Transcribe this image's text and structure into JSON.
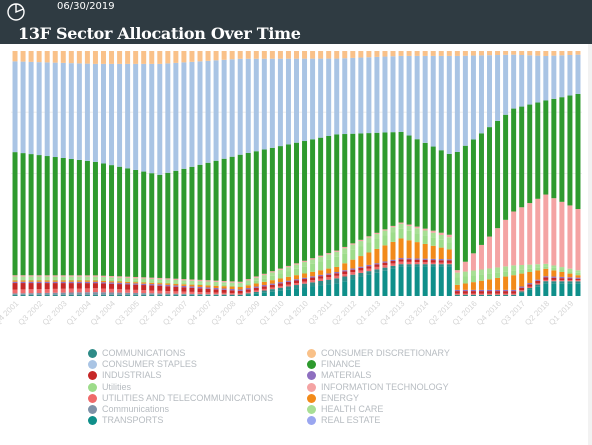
{
  "header": {
    "date": "06/30/2019",
    "title": "13F Sector Allocation Over Time"
  },
  "colors": {
    "header_bg": "#2f3b42",
    "page_bg": "#f2f2f2"
  },
  "chart_data": {
    "type": "bar",
    "stacked": true,
    "normalized": true,
    "title": "13F Sector Allocation Over Time",
    "ylim": [
      0,
      100
    ],
    "x_tick_labels": [
      "Q4 2001",
      "Q3 2002",
      "Q2 2003",
      "Q1 2004",
      "Q4 2004",
      "Q3 2005",
      "Q2 2006",
      "Q1 2007",
      "Q4 2007",
      "Q3 2008",
      "Q2 2009",
      "Q1 2010",
      "Q4 2010",
      "Q3 2011",
      "Q2 2012",
      "Q1 2013",
      "Q4 2013",
      "Q3 2014",
      "Q2 2015",
      "Q1 2016",
      "Q4 2016",
      "Q3 2017",
      "Q2 2018",
      "Q1 2019"
    ],
    "x_tick_start_index": 0,
    "x_tick_step": 3,
    "series_order": [
      "TRANSPORTS",
      "COMMUNICATIONS",
      "Communications",
      "UTILITIES AND TELECOMMUNICATIONS",
      "INDUSTRIALS",
      "MATERIALS",
      "ENERGY",
      "Utilities",
      "HEALTH CARE",
      "INFORMATION TECHNOLOGY",
      "REAL ESTATE",
      "FINANCE",
      "CONSUMER STAPLES",
      "CONSUMER DISCRETIONARY"
    ],
    "series_colors": {
      "COMMUNICATIONS": "#2e8b87",
      "CONSUMER STAPLES": "#a9c4e4",
      "INDUSTRIALS": "#c62828",
      "Utilities": "#9ddc8a",
      "UTILITIES AND TELECOMMUNICATIONS": "#ef6a6a",
      "Communications": "#7f92a8",
      "TRANSPORTS": "#0f8f8a",
      "CONSUMER DISCRETIONARY": "#f9c189",
      "FINANCE": "#2e9a2e",
      "MATERIALS": "#8e6fc0",
      "INFORMATION TECHNOLOGY": "#f4a3a3",
      "ENERGY": "#f28a1a",
      "HEALTH CARE": "#a8df95",
      "REAL ESTATE": "#9aa6f0"
    },
    "x_axis_label_color": "#d4d4d4",
    "legend_placement": "bottom",
    "legend": [
      {
        "name": "COMMUNICATIONS",
        "color": "#2e8b87"
      },
      {
        "name": "CONSUMER DISCRETIONARY",
        "color": "#f9c189"
      },
      {
        "name": "CONSUMER STAPLES",
        "color": "#a9c4e4"
      },
      {
        "name": "FINANCE",
        "color": "#2e9a2e"
      },
      {
        "name": "INDUSTRIALS",
        "color": "#c62828"
      },
      {
        "name": "MATERIALS",
        "color": "#8e6fc0"
      },
      {
        "name": "Utilities",
        "color": "#9ddc8a"
      },
      {
        "name": "INFORMATION TECHNOLOGY",
        "color": "#f4a3a3"
      },
      {
        "name": "UTILITIES AND TELECOMMUNICATIONS",
        "color": "#ef6a6a"
      },
      {
        "name": "ENERGY",
        "color": "#f28a1a"
      },
      {
        "name": "Communications",
        "color": "#7f92a8"
      },
      {
        "name": "HEALTH CARE",
        "color": "#a8df95"
      },
      {
        "name": "TRANSPORTS",
        "color": "#0f8f8a"
      },
      {
        "name": "REAL ESTATE",
        "color": "#9aa6f0"
      }
    ],
    "quarter_count": 71,
    "keyframes": [
      {
        "i": 0,
        "TRANSPORTS": 0,
        "COMMUNICATIONS": 0.5,
        "Communications": 0.5,
        "UTILITIES AND TELECOMMUNICATIONS": 1.5,
        "INDUSTRIALS": 2.5,
        "MATERIALS": 0.5,
        "ENERGY": 0.5,
        "Utilities": 0.5,
        "HEALTH CARE": 1.0,
        "INFORMATION TECHNOLOGY": 0.5,
        "REAL ESTATE": 0,
        "FINANCE": 47.5,
        "CONSUMER STAPLES": 35,
        "CONSUMER DISCRETIONARY": 4
      },
      {
        "i": 10,
        "TRANSPORTS": 0,
        "COMMUNICATIONS": 0.5,
        "Communications": 1.0,
        "UTILITIES AND TELECOMMUNICATIONS": 1.5,
        "INDUSTRIALS": 2.0,
        "MATERIALS": 0.5,
        "ENERGY": 0.5,
        "Utilities": 0.5,
        "HEALTH CARE": 1.0,
        "INFORMATION TECHNOLOGY": 0.5,
        "REAL ESTATE": 0,
        "FINANCE": 44,
        "CONSUMER STAPLES": 38,
        "CONSUMER DISCRETIONARY": 5
      },
      {
        "i": 18,
        "TRANSPORTS": 0,
        "COMMUNICATIONS": 0.5,
        "Communications": 0.5,
        "UTILITIES AND TELECOMMUNICATIONS": 1.0,
        "INDUSTRIALS": 2.0,
        "MATERIALS": 0.5,
        "ENERGY": 0.5,
        "Utilities": 0.5,
        "HEALTH CARE": 1.0,
        "INFORMATION TECHNOLOGY": 0.5,
        "REAL ESTATE": 0,
        "FINANCE": 40,
        "CONSUMER STAPLES": 43,
        "CONSUMER DISCRETIONARY": 5
      },
      {
        "i": 28,
        "TRANSPORTS": 0,
        "COMMUNICATIONS": 0.5,
        "Communications": 0,
        "UTILITIES AND TELECOMMUNICATIONS": 0.5,
        "INDUSTRIALS": 1.0,
        "MATERIALS": 0.5,
        "ENERGY": 1.0,
        "Utilities": 0.5,
        "HEALTH CARE": 1.0,
        "INFORMATION TECHNOLOGY": 0.5,
        "REAL ESTATE": 0,
        "FINANCE": 49,
        "CONSUMER STAPLES": 37,
        "CONSUMER DISCRETIONARY": 3
      },
      {
        "i": 40,
        "TRANSPORTS": 5,
        "COMMUNICATIONS": 2.0,
        "Communications": 0,
        "UTILITIES AND TELECOMMUNICATIONS": 1.0,
        "INDUSTRIALS": 1.0,
        "MATERIALS": 0.5,
        "ENERGY": 2.0,
        "Utilities": 4.0,
        "HEALTH CARE": 2.0,
        "INFORMATION TECHNOLOGY": 0.5,
        "REAL ESTATE": 0,
        "FINANCE": 46,
        "CONSUMER STAPLES": 30,
        "CONSUMER DISCRETIONARY": 3
      },
      {
        "i": 48,
        "TRANSPORTS": 12,
        "COMMUNICATIONS": 1.0,
        "Communications": 0,
        "UTILITIES AND TELECOMMUNICATIONS": 1.0,
        "INDUSTRIALS": 1.0,
        "MATERIALS": 0.5,
        "ENERGY": 8.0,
        "Utilities": 4.0,
        "HEALTH CARE": 2.0,
        "INFORMATION TECHNOLOGY": 0.5,
        "REAL ESTATE": 0,
        "FINANCE": 37,
        "CONSUMER STAPLES": 31,
        "CONSUMER DISCRETIONARY": 2
      },
      {
        "i": 54,
        "TRANSPORTS": 12,
        "COMMUNICATIONS": 1.0,
        "Communications": 0,
        "UTILITIES AND TELECOMMUNICATIONS": 0.5,
        "INDUSTRIALS": 1.0,
        "MATERIALS": 0.5,
        "ENERGY": 4.0,
        "Utilities": 3.0,
        "HEALTH CARE": 2.0,
        "INFORMATION TECHNOLOGY": 1.0,
        "REAL ESTATE": 0,
        "FINANCE": 33,
        "CONSUMER STAPLES": 40,
        "CONSUMER DISCRETIONARY": 2
      },
      {
        "i": 55,
        "TRANSPORTS": 0,
        "COMMUNICATIONS": 0.5,
        "Communications": 0,
        "UTILITIES AND TELECOMMUNICATIONS": 0.5,
        "INDUSTRIALS": 1.0,
        "MATERIALS": 0.5,
        "ENERGY": 2.0,
        "Utilities": 3.0,
        "HEALTH CARE": 2.0,
        "INFORMATION TECHNOLOGY": 1.0,
        "REAL ESTATE": 0,
        "FINANCE": 48,
        "CONSUMER STAPLES": 39,
        "CONSUMER DISCRETIONARY": 2
      },
      {
        "i": 62,
        "TRANSPORTS": 0,
        "COMMUNICATIONS": 0.5,
        "Communications": 0,
        "UTILITIES AND TELECOMMUNICATIONS": 0.5,
        "INDUSTRIALS": 1.0,
        "MATERIALS": 0.5,
        "ENERGY": 6.0,
        "Utilities": 2.0,
        "HEALTH CARE": 2.0,
        "INFORMATION TECHNOLOGY": 22,
        "REAL ESTATE": 0,
        "FINANCE": 42,
        "CONSUMER STAPLES": 22,
        "CONSUMER DISCRETIONARY": 1.5
      },
      {
        "i": 66,
        "TRANSPORTS": 5,
        "COMMUNICATIONS": 1.0,
        "Communications": 0,
        "UTILITIES AND TELECOMMUNICATIONS": 0.5,
        "INDUSTRIALS": 1.0,
        "MATERIALS": 0.5,
        "ENERGY": 3.0,
        "Utilities": 1.0,
        "HEALTH CARE": 1.0,
        "INFORMATION TECHNOLOGY": 28,
        "REAL ESTATE": 0,
        "FINANCE": 38,
        "CONSUMER STAPLES": 18,
        "CONSUMER DISCRETIONARY": 2
      },
      {
        "i": 70,
        "TRANSPORTS": 5,
        "COMMUNICATIONS": 1.0,
        "Communications": 0,
        "UTILITIES AND TELECOMMUNICATIONS": 0.5,
        "INDUSTRIALS": 0.5,
        "MATERIALS": 0.5,
        "ENERGY": 1.0,
        "Utilities": 1.0,
        "HEALTH CARE": 1.0,
        "INFORMATION TECHNOLOGY": 25,
        "REAL ESTATE": 0,
        "FINANCE": 47,
        "CONSUMER STAPLES": 16,
        "CONSUMER DISCRETIONARY": 1.5
      }
    ]
  }
}
